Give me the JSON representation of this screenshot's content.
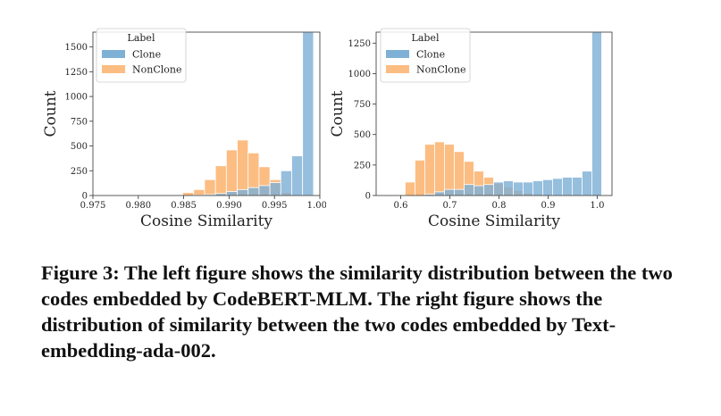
{
  "chart_data": [
    {
      "type": "histogram",
      "xlabel": "Cosine Similarity",
      "ylabel": "Count",
      "xlim": [
        0.975,
        1.0
      ],
      "ylim": [
        0,
        1650
      ],
      "xticks": [
        0.975,
        0.98,
        0.985,
        0.99,
        0.995,
        1.0
      ],
      "xtick_labels": [
        "0.975",
        "0.980",
        "0.985",
        "0.990",
        "0.995",
        "1.000"
      ],
      "yticks": [
        0,
        250,
        500,
        750,
        1000,
        1250,
        1500
      ],
      "ytick_labels": [
        "0",
        "250",
        "500",
        "750",
        "1000",
        "1250",
        "1500"
      ],
      "legend": {
        "title": "Label",
        "placement": "top-left",
        "entries": [
          "Clone",
          "NonClone"
        ]
      },
      "bin_edges": [
        0.9753,
        0.9765,
        0.9777,
        0.9789,
        0.9801,
        0.9813,
        0.9825,
        0.9837,
        0.9849,
        0.9861,
        0.9873,
        0.9885,
        0.9897,
        0.9909,
        0.9921,
        0.9933,
        0.9945,
        0.9957,
        0.9969,
        0.9981,
        0.9993
      ],
      "series": [
        {
          "name": "Clone",
          "color": "#7fb0d6",
          "values": [
            0,
            0,
            0,
            0,
            0,
            0,
            0,
            0,
            0,
            4,
            10,
            20,
            40,
            60,
            80,
            100,
            130,
            250,
            400,
            1650
          ]
        },
        {
          "name": "NonClone",
          "color": "#fcbd82",
          "values": [
            0,
            0,
            0,
            0,
            0,
            0,
            0,
            0,
            30,
            60,
            160,
            300,
            460,
            560,
            430,
            290,
            160,
            30,
            0,
            0
          ]
        }
      ]
    },
    {
      "type": "histogram",
      "xlabel": "Cosine Similarity",
      "ylabel": "Count",
      "xlim": [
        0.55,
        1.03
      ],
      "ylim": [
        0,
        1340
      ],
      "xticks": [
        0.6,
        0.7,
        0.8,
        0.9,
        1.0
      ],
      "xtick_labels": [
        "0.6",
        "0.7",
        "0.8",
        "0.9",
        "1.0"
      ],
      "yticks": [
        0,
        250,
        500,
        750,
        1000,
        1250
      ],
      "ytick_labels": [
        "0",
        "250",
        "500",
        "750",
        "1000",
        "1250"
      ],
      "legend": {
        "title": "Label",
        "placement": "top-left",
        "entries": [
          "Clone",
          "NonClone"
        ]
      },
      "bin_edges": [
        0.609,
        0.629,
        0.649,
        0.669,
        0.689,
        0.709,
        0.729,
        0.749,
        0.769,
        0.789,
        0.809,
        0.829,
        0.849,
        0.869,
        0.889,
        0.909,
        0.929,
        0.949,
        0.969,
        0.989,
        1.009
      ],
      "series": [
        {
          "name": "Clone",
          "color": "#7fb0d6",
          "values": [
            0,
            0,
            10,
            30,
            50,
            50,
            90,
            80,
            90,
            110,
            120,
            110,
            110,
            120,
            130,
            140,
            150,
            150,
            200,
            1340
          ]
        },
        {
          "name": "NonClone",
          "color": "#fcbd82",
          "values": [
            110,
            290,
            420,
            440,
            420,
            360,
            280,
            200,
            150,
            100,
            70,
            40,
            20,
            10,
            0,
            0,
            0,
            0,
            0,
            0
          ]
        }
      ]
    }
  ],
  "caption": "Figure 3: The left figure shows the similarity distribution between the two codes embedded by CodeBERT-MLM. The right figure shows the distribution of similarity between the two codes embedded by Text-embedding-ada-002."
}
